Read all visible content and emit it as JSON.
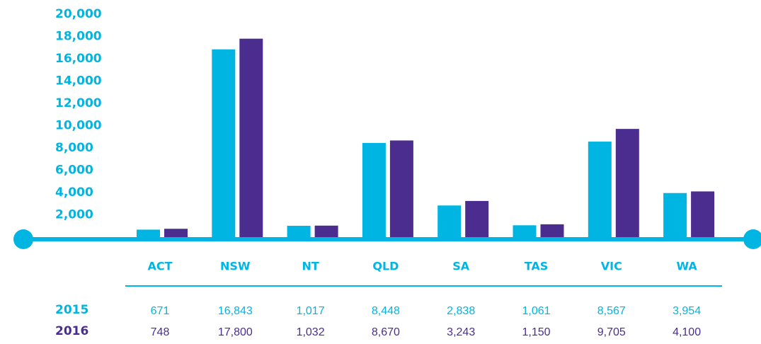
{
  "chart_data": {
    "type": "bar",
    "categories": [
      "ACT",
      "NSW",
      "NT",
      "QLD",
      "SA",
      "TAS",
      "VIC",
      "WA"
    ],
    "series": [
      {
        "name": "2015",
        "color": "#00b5e2",
        "values": [
          671,
          16843,
          1017,
          8448,
          2838,
          1061,
          8567,
          3954
        ],
        "value_labels": [
          "671",
          "16,843",
          "1,017",
          "8,448",
          "2,838",
          "1,061",
          "8,567",
          "3,954"
        ]
      },
      {
        "name": "2016",
        "color": "#4b2d8f",
        "values": [
          748,
          17800,
          1032,
          8670,
          3243,
          1150,
          9705,
          4100
        ],
        "value_labels": [
          "748",
          "17,800",
          "1,032",
          "8,670",
          "3,243",
          "1,150",
          "9,705",
          "4,100"
        ]
      }
    ],
    "ylim": [
      0,
      20000
    ],
    "yticks": [
      {
        "value": 2000,
        "label": "2,000"
      },
      {
        "value": 4000,
        "label": "4,000"
      },
      {
        "value": 6000,
        "label": "6,000"
      },
      {
        "value": 8000,
        "label": "8,000"
      },
      {
        "value": 10000,
        "label": "10,000"
      },
      {
        "value": 12000,
        "label": "12,000"
      },
      {
        "value": 14000,
        "label": "14,000"
      },
      {
        "value": 16000,
        "label": "16,000"
      },
      {
        "value": 18000,
        "label": "18,000"
      },
      {
        "value": 20000,
        "label": "20,000"
      }
    ],
    "grid": false
  }
}
